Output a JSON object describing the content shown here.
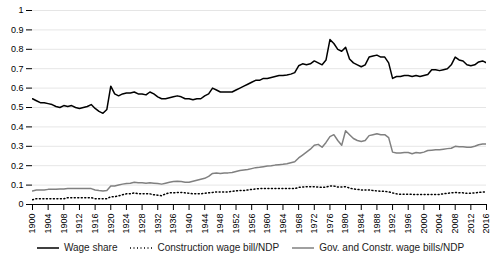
{
  "chart_data": {
    "type": "line",
    "x": [
      1900,
      1901,
      1902,
      1903,
      1904,
      1905,
      1906,
      1907,
      1908,
      1909,
      1910,
      1911,
      1912,
      1913,
      1914,
      1915,
      1916,
      1917,
      1918,
      1919,
      1920,
      1921,
      1922,
      1923,
      1924,
      1925,
      1926,
      1927,
      1928,
      1929,
      1930,
      1931,
      1932,
      1933,
      1934,
      1935,
      1936,
      1937,
      1938,
      1939,
      1940,
      1941,
      1942,
      1943,
      1944,
      1945,
      1946,
      1947,
      1948,
      1949,
      1950,
      1951,
      1952,
      1953,
      1954,
      1955,
      1956,
      1957,
      1958,
      1959,
      1960,
      1961,
      1962,
      1963,
      1964,
      1965,
      1966,
      1967,
      1968,
      1969,
      1970,
      1971,
      1972,
      1973,
      1974,
      1975,
      1976,
      1977,
      1978,
      1979,
      1980,
      1981,
      1982,
      1983,
      1984,
      1985,
      1986,
      1987,
      1988,
      1989,
      1990,
      1991,
      1992,
      1993,
      1994,
      1995,
      1996,
      1997,
      1998,
      1999,
      2000,
      2001,
      2002,
      2003,
      2004,
      2005,
      2006,
      2007,
      2008,
      2009,
      2010,
      2011,
      2012,
      2013,
      2014,
      2015,
      2016
    ],
    "series": [
      {
        "name": "Wage share",
        "color": "#000000",
        "line_style": "solid",
        "values": [
          0.545,
          0.535,
          0.525,
          0.525,
          0.52,
          0.515,
          0.505,
          0.5,
          0.51,
          0.505,
          0.51,
          0.5,
          0.495,
          0.5,
          0.505,
          0.515,
          0.495,
          0.48,
          0.47,
          0.49,
          0.61,
          0.57,
          0.56,
          0.57,
          0.575,
          0.575,
          0.58,
          0.57,
          0.57,
          0.565,
          0.58,
          0.57,
          0.555,
          0.545,
          0.545,
          0.55,
          0.555,
          0.56,
          0.555,
          0.545,
          0.545,
          0.54,
          0.545,
          0.545,
          0.56,
          0.57,
          0.6,
          0.59,
          0.58,
          0.58,
          0.58,
          0.58,
          0.59,
          0.6,
          0.61,
          0.62,
          0.63,
          0.64,
          0.64,
          0.65,
          0.65,
          0.655,
          0.66,
          0.665,
          0.665,
          0.668,
          0.672,
          0.68,
          0.715,
          0.725,
          0.72,
          0.725,
          0.74,
          0.73,
          0.72,
          0.745,
          0.85,
          0.83,
          0.8,
          0.79,
          0.81,
          0.75,
          0.73,
          0.72,
          0.71,
          0.72,
          0.76,
          0.765,
          0.77,
          0.76,
          0.76,
          0.73,
          0.65,
          0.66,
          0.66,
          0.665,
          0.665,
          0.66,
          0.665,
          0.66,
          0.665,
          0.67,
          0.695,
          0.695,
          0.69,
          0.695,
          0.7,
          0.72,
          0.76,
          0.745,
          0.74,
          0.72,
          0.715,
          0.72,
          0.735,
          0.74,
          0.73
        ]
      },
      {
        "name": "Construction wage bill/NDP",
        "color": "#000000",
        "line_style": "dotted",
        "values": [
          0.025,
          0.03,
          0.03,
          0.03,
          0.03,
          0.03,
          0.03,
          0.03,
          0.03,
          0.035,
          0.035,
          0.035,
          0.035,
          0.035,
          0.035,
          0.035,
          0.03,
          0.03,
          0.03,
          0.03,
          0.04,
          0.04,
          0.045,
          0.05,
          0.055,
          0.055,
          0.06,
          0.055,
          0.055,
          0.055,
          0.055,
          0.05,
          0.048,
          0.045,
          0.055,
          0.06,
          0.06,
          0.062,
          0.062,
          0.06,
          0.058,
          0.055,
          0.055,
          0.055,
          0.058,
          0.06,
          0.062,
          0.065,
          0.065,
          0.065,
          0.065,
          0.068,
          0.07,
          0.072,
          0.072,
          0.075,
          0.078,
          0.08,
          0.082,
          0.082,
          0.082,
          0.082,
          0.082,
          0.082,
          0.082,
          0.082,
          0.082,
          0.082,
          0.088,
          0.09,
          0.092,
          0.092,
          0.092,
          0.09,
          0.088,
          0.09,
          0.095,
          0.095,
          0.09,
          0.09,
          0.092,
          0.085,
          0.08,
          0.078,
          0.075,
          0.075,
          0.075,
          0.072,
          0.07,
          0.068,
          0.068,
          0.065,
          0.06,
          0.055,
          0.053,
          0.053,
          0.053,
          0.052,
          0.052,
          0.052,
          0.052,
          0.052,
          0.052,
          0.052,
          0.052,
          0.055,
          0.058,
          0.06,
          0.062,
          0.06,
          0.06,
          0.058,
          0.058,
          0.06,
          0.062,
          0.065,
          0.065
        ]
      },
      {
        "name": "Gov. and Constr. wage bills/NDP",
        "color": "#808080",
        "line_style": "solid",
        "values": [
          0.07,
          0.075,
          0.075,
          0.075,
          0.078,
          0.078,
          0.078,
          0.08,
          0.08,
          0.082,
          0.082,
          0.082,
          0.082,
          0.082,
          0.082,
          0.082,
          0.075,
          0.072,
          0.07,
          0.072,
          0.095,
          0.095,
          0.1,
          0.105,
          0.108,
          0.11,
          0.115,
          0.112,
          0.112,
          0.11,
          0.112,
          0.11,
          0.108,
          0.105,
          0.11,
          0.115,
          0.118,
          0.12,
          0.118,
          0.115,
          0.115,
          0.12,
          0.125,
          0.13,
          0.135,
          0.145,
          0.16,
          0.162,
          0.16,
          0.162,
          0.163,
          0.165,
          0.17,
          0.175,
          0.178,
          0.18,
          0.185,
          0.19,
          0.192,
          0.195,
          0.198,
          0.2,
          0.203,
          0.205,
          0.207,
          0.21,
          0.215,
          0.22,
          0.24,
          0.255,
          0.27,
          0.285,
          0.305,
          0.31,
          0.295,
          0.32,
          0.35,
          0.36,
          0.33,
          0.305,
          0.38,
          0.36,
          0.34,
          0.33,
          0.325,
          0.33,
          0.355,
          0.36,
          0.365,
          0.36,
          0.36,
          0.345,
          0.27,
          0.265,
          0.265,
          0.268,
          0.268,
          0.262,
          0.268,
          0.265,
          0.27,
          0.278,
          0.28,
          0.282,
          0.282,
          0.285,
          0.288,
          0.29,
          0.3,
          0.298,
          0.298,
          0.295,
          0.295,
          0.3,
          0.308,
          0.312,
          0.312
        ]
      }
    ],
    "xlim": [
      1900,
      2016
    ],
    "xticks": [
      1900,
      1904,
      1908,
      1912,
      1916,
      1920,
      1924,
      1928,
      1932,
      1936,
      1940,
      1944,
      1948,
      1952,
      1956,
      1960,
      1964,
      1968,
      1972,
      1976,
      1980,
      1984,
      1988,
      1992,
      1996,
      2000,
      2004,
      2008,
      2012,
      2016
    ],
    "ylim": [
      0,
      1.0
    ],
    "yticks": [
      0,
      0.1,
      0.2,
      0.3,
      0.4,
      0.5,
      0.6,
      0.7,
      0.8,
      0.9,
      1.0
    ],
    "grid": true,
    "legend": "bottom"
  }
}
